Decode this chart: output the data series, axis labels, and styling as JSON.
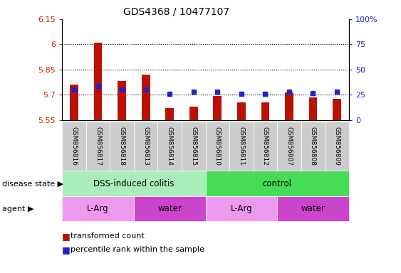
{
  "title": "GDS4368 / 10477107",
  "samples": [
    "GSM856816",
    "GSM856817",
    "GSM856818",
    "GSM856813",
    "GSM856814",
    "GSM856815",
    "GSM856810",
    "GSM856811",
    "GSM856812",
    "GSM856807",
    "GSM856808",
    "GSM856809"
  ],
  "transformed_count": [
    5.76,
    6.01,
    5.78,
    5.82,
    5.62,
    5.63,
    5.695,
    5.655,
    5.655,
    5.715,
    5.685,
    5.675
  ],
  "percentile_rank": [
    30,
    34,
    30,
    30,
    26,
    28,
    28,
    26,
    26,
    28,
    27,
    28
  ],
  "ymin": 5.55,
  "ymax": 6.15,
  "yticks": [
    5.55,
    5.7,
    5.85,
    6.0,
    6.15
  ],
  "ytick_labels": [
    "5.55",
    "5.7",
    "5.85",
    "6",
    "6.15"
  ],
  "y2ticks": [
    0,
    25,
    50,
    75,
    100
  ],
  "y2tick_labels": [
    "0",
    "25",
    "50",
    "75",
    "100%"
  ],
  "dotted_lines": [
    5.7,
    5.85,
    6.0
  ],
  "bar_color": "#bb1100",
  "dot_color": "#2222cc",
  "bar_bottom": 5.55,
  "disease_state_groups": [
    {
      "label": "DSS-induced colitis",
      "start": 0,
      "end": 5,
      "color": "#aaeebb"
    },
    {
      "label": "control",
      "start": 6,
      "end": 11,
      "color": "#44dd55"
    }
  ],
  "agent_groups": [
    {
      "label": "L-Arg",
      "start": 0,
      "end": 2,
      "color": "#ee99ee"
    },
    {
      "label": "water",
      "start": 3,
      "end": 5,
      "color": "#cc44cc"
    },
    {
      "label": "L-Arg",
      "start": 6,
      "end": 8,
      "color": "#ee99ee"
    },
    {
      "label": "water",
      "start": 9,
      "end": 11,
      "color": "#cc44cc"
    }
  ],
  "disease_state_label": "disease state",
  "agent_label": "agent",
  "tick_color_left": "#cc2200",
  "tick_color_right": "#2222bb",
  "sample_bg_color": "#cccccc"
}
